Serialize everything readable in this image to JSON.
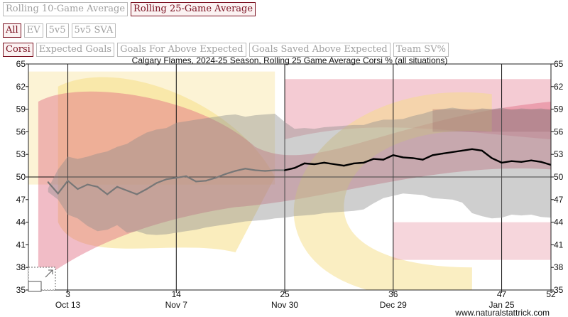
{
  "controls": {
    "window": [
      {
        "label": "Rolling 10-Game Average",
        "active": false
      },
      {
        "label": "Rolling 25-Game Average",
        "active": true
      }
    ],
    "situation": [
      {
        "label": "All",
        "active": true
      },
      {
        "label": "EV",
        "active": false
      },
      {
        "label": "5v5",
        "active": false
      },
      {
        "label": "5v5 SVA",
        "active": false
      }
    ],
    "metric": [
      {
        "label": "Corsi",
        "active": true
      },
      {
        "label": "Expected Goals",
        "active": false
      },
      {
        "label": "Goals For Above Expected",
        "active": false
      },
      {
        "label": "Goals Saved Above Expected",
        "active": false
      },
      {
        "label": "Team SV%",
        "active": false
      }
    ]
  },
  "watermark": "www.naturalstattrick.com",
  "colors": {
    "line_light": "#777777",
    "line_dark": "#000000",
    "band": "#8c8c8c",
    "logo_red": "#e06a80",
    "logo_gold": "#f6de86",
    "logo_dark": "#7a1020"
  },
  "chart_data": {
    "type": "line",
    "title": "Calgary Flames, 2024-25 Season, Rolling 25 Game Average Corsi % (all situations)",
    "xlim": [
      -1,
      52
    ],
    "ylim": [
      35,
      65
    ],
    "yticks": [
      35,
      38,
      41,
      44,
      47,
      50,
      53,
      56,
      59,
      62,
      65
    ],
    "xticks": [
      {
        "x": 3,
        "game": "3",
        "date": "Oct 13"
      },
      {
        "x": 14,
        "game": "14",
        "date": "Nov 7"
      },
      {
        "x": 25,
        "game": "25",
        "date": "Nov 30"
      },
      {
        "x": 36,
        "game": "36",
        "date": "Dec 29"
      },
      {
        "x": 47,
        "game": "47",
        "date": "Jan 25"
      },
      {
        "x": 52,
        "game": "52",
        "date": ""
      }
    ],
    "reference_line": 50,
    "first_full_window_game": 25,
    "series": [
      {
        "x": [
          1,
          2,
          3,
          4,
          5,
          6,
          7,
          8,
          9,
          10,
          11,
          12,
          13,
          14,
          15,
          16,
          17,
          18,
          19,
          20,
          21,
          22,
          23,
          24,
          25,
          26,
          27,
          28,
          29,
          30,
          31,
          32,
          33,
          34,
          35,
          36,
          37,
          38,
          39,
          40,
          41,
          42,
          43,
          44,
          45,
          46,
          47,
          48,
          49,
          50,
          51,
          52
        ],
        "values": [
          49.3,
          47.8,
          49.5,
          48.4,
          49.0,
          48.7,
          47.7,
          48.7,
          48.2,
          47.7,
          48.4,
          49.2,
          49.7,
          49.9,
          50.1,
          49.4,
          49.5,
          49.9,
          50.4,
          50.8,
          51.1,
          50.9,
          50.8,
          50.9,
          50.9,
          51.2,
          51.8,
          51.7,
          51.9,
          51.7,
          51.5,
          51.8,
          51.9,
          52.4,
          52.3,
          52.9,
          52.6,
          52.5,
          52.3,
          52.9,
          53.1,
          53.3,
          53.5,
          53.7,
          53.5,
          52.5,
          51.9,
          52.1,
          52.0,
          52.2,
          52.0,
          51.6
        ],
        "upper": [
          48.5,
          51.0,
          52.7,
          52.4,
          52.7,
          53.1,
          53.4,
          54.0,
          54.4,
          55.2,
          55.9,
          56.3,
          56.5,
          57.2,
          57.4,
          57.6,
          57.8,
          58.0,
          58.2,
          58.3,
          58.0,
          58.2,
          58.3,
          58.4,
          57.3,
          56.4,
          56.5,
          56.4,
          56.6,
          56.7,
          56.8,
          56.9,
          56.9,
          57.3,
          57.6,
          57.6,
          57.7,
          58.1,
          58.4,
          58.8,
          59.0,
          59.2,
          59.0,
          58.8,
          59.1,
          59.0,
          59.2,
          58.9,
          59.1,
          59.0,
          59.1,
          58.9
        ],
        "lower": [
          48.0,
          47.0,
          45.0,
          44.5,
          43.5,
          42.8,
          43.0,
          43.6,
          42.6,
          42.8,
          42.4,
          42.3,
          42.4,
          42.6,
          42.8,
          43.0,
          43.3,
          43.5,
          43.7,
          43.9,
          44.1,
          44.2,
          44.3,
          44.5,
          44.6,
          44.8,
          44.9,
          45.0,
          45.2,
          45.3,
          45.4,
          45.5,
          45.7,
          46.5,
          47.2,
          47.5,
          47.8,
          47.7,
          47.6,
          47.2,
          47.1,
          47.0,
          46.6,
          45.2,
          44.8,
          44.5,
          44.6,
          45.0,
          44.9,
          45.0,
          44.7,
          44.6
        ]
      }
    ]
  }
}
